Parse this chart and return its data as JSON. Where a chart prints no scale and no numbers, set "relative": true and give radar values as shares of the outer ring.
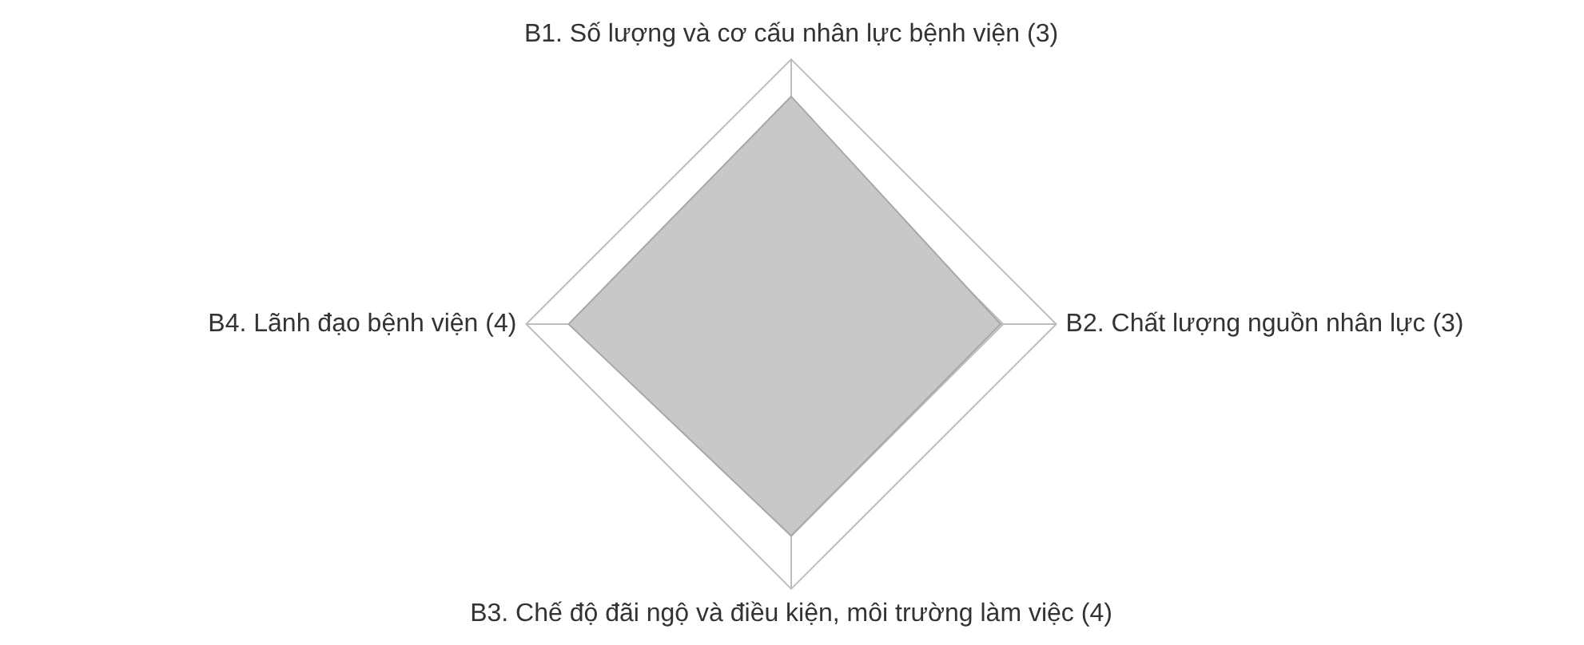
{
  "chart_data": {
    "type": "radar",
    "relative": true,
    "categories": [
      "B1. Số lượng và cơ cấu nhân lực bệnh viện (3)",
      "B2. Chất lượng nguồn nhân lực (3)",
      "B3. Chế độ đãi ngộ và điều kiện, môi trường làm việc (4)",
      "B4. Lãnh đạo bệnh viện (4)"
    ],
    "series": [
      {
        "color": "#c8c8c8",
        "values": [
          0.86,
          0.79,
          0.8,
          0.84
        ]
      }
    ],
    "grid": true,
    "legend": false,
    "marker": "none"
  }
}
